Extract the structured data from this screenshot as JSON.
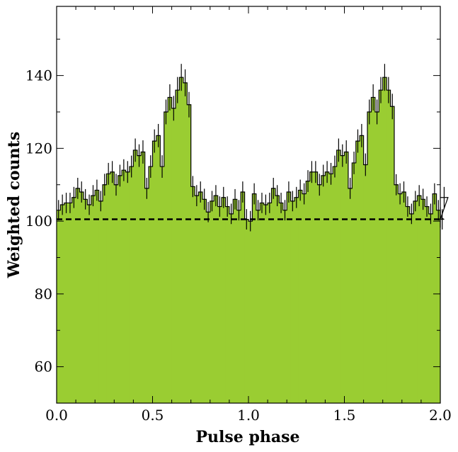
{
  "chart_data": {
    "type": "bar",
    "xlabel": "Pulse phase",
    "ylabel": "Weighted counts",
    "xlim": [
      0.0,
      2.0
    ],
    "ylim": [
      50,
      159
    ],
    "x_ticks": [
      "0.0",
      "0.5",
      "1.0",
      "1.5",
      "2.0"
    ],
    "x_tick_values": [
      0.0,
      0.5,
      1.0,
      1.5,
      2.0
    ],
    "y_ticks": [
      "60",
      "80",
      "100",
      "120",
      "140"
    ],
    "y_tick_values": [
      60,
      80,
      100,
      120,
      140
    ],
    "grid": false,
    "bin_width": 0.02,
    "values": [
      103.0,
      104.5,
      105.0,
      105.0,
      106.5,
      109.0,
      108.0,
      106.0,
      104.5,
      107.0,
      108.5,
      105.5,
      110.0,
      113.0,
      113.5,
      110.0,
      112.5,
      114.0,
      113.5,
      115.0,
      119.5,
      118.0,
      119.0,
      109.0,
      115.0,
      122.0,
      123.5,
      115.0,
      130.0,
      134.0,
      131.0,
      136.0,
      139.5,
      138.0,
      132.0,
      109.5,
      107.0,
      108.0,
      106.0,
      102.5,
      105.5,
      107.0,
      104.0,
      106.5,
      104.0,
      102.0,
      106.0,
      103.0,
      108.0,
      100.5,
      100.0,
      107.5,
      103.0,
      105.0,
      104.5,
      105.0,
      109.0,
      107.0,
      105.0,
      103.0,
      108.0,
      105.5,
      106.5,
      108.5,
      107.5,
      111.0,
      113.5,
      113.5,
      110.0,
      112.5,
      113.5,
      113.0,
      115.0,
      119.5,
      118.0,
      119.0,
      109.0,
      116.0,
      122.0,
      123.5,
      115.5,
      130.0,
      134.0,
      130.0,
      136.0,
      139.5,
      136.0,
      131.5,
      110.0,
      107.5,
      108.0,
      104.0,
      102.0,
      105.5,
      107.0,
      106.0,
      104.0,
      102.0,
      107.5,
      103.0,
      101.0,
      100.5,
      106.5
    ],
    "errors": [
      2.8,
      2.8,
      2.8,
      2.8,
      2.9,
      2.9,
      2.9,
      2.8,
      2.8,
      2.9,
      2.9,
      2.8,
      3.0,
      3.0,
      3.0,
      3.0,
      3.0,
      3.0,
      3.0,
      3.0,
      3.2,
      3.1,
      3.2,
      2.9,
      3.1,
      3.2,
      3.2,
      3.1,
      3.4,
      3.6,
      3.4,
      3.6,
      3.7,
      3.7,
      3.5,
      2.9,
      2.9,
      2.9,
      2.9,
      2.8,
      2.8,
      2.9,
      2.8,
      2.9,
      2.8,
      2.8,
      2.8,
      2.8,
      2.9,
      2.8,
      2.8,
      2.9,
      2.8,
      2.8,
      2.8,
      2.8,
      2.9,
      2.9,
      2.8,
      2.8,
      2.9,
      2.8,
      2.9,
      2.9,
      2.9,
      3.0,
      3.0,
      3.0,
      3.0,
      3.0,
      3.0,
      3.0,
      3.0,
      3.2,
      3.1,
      3.2,
      2.9,
      3.1,
      3.2,
      3.2,
      3.1,
      3.4,
      3.6,
      3.4,
      3.6,
      3.7,
      3.6,
      3.5,
      2.9,
      2.9,
      2.9,
      2.8,
      2.8,
      2.8,
      2.9,
      2.9,
      2.8,
      2.8,
      2.9,
      2.8,
      2.8,
      2.8,
      2.9
    ],
    "baseline": 100.5,
    "colors": {
      "fill": "#9acd32",
      "edge": "#000000",
      "baseline": "#000000"
    }
  }
}
